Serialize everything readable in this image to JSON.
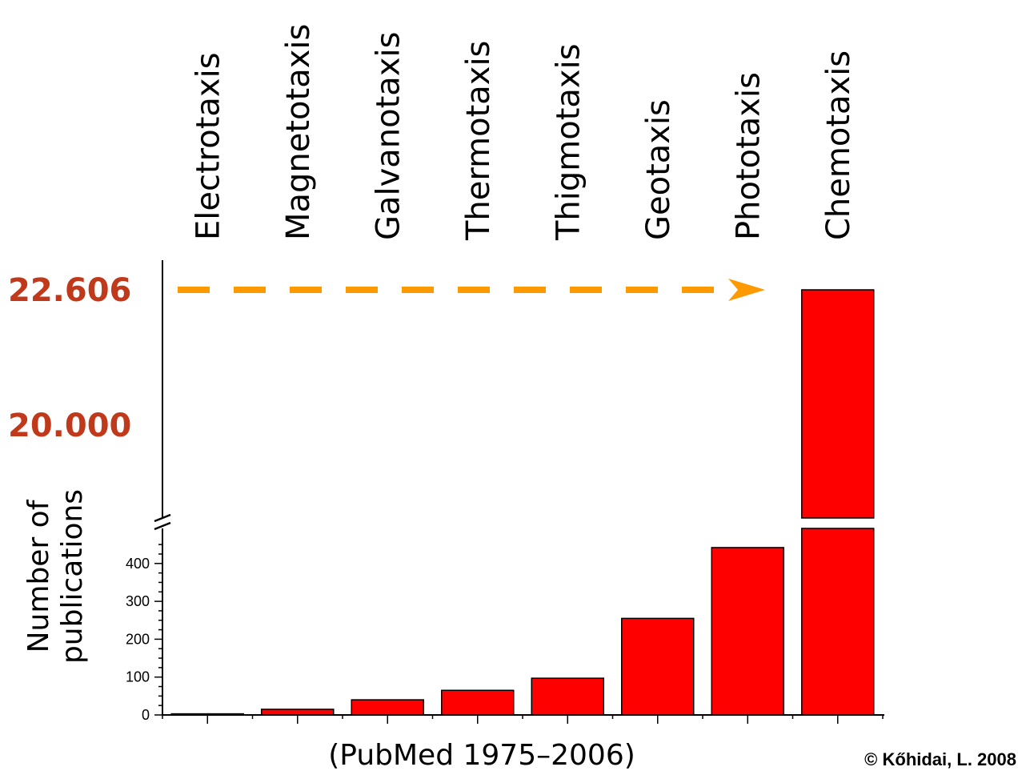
{
  "chart_data": {
    "type": "bar",
    "categories": [
      "Electrotaxis",
      "Magnetotaxis",
      "Galvanotaxis",
      "Thermotaxis",
      "Thigmotaxis",
      "Geotaxis",
      "Phototaxis",
      "Chemotaxis"
    ],
    "values": [
      3,
      15,
      40,
      65,
      97,
      255,
      442,
      22606
    ],
    "ylabel_lines": [
      "Number of",
      "publications"
    ],
    "xlabel": "(PubMed 1975–2006)",
    "ylim_lower": [
      0,
      460
    ],
    "ylim_upper_ticks": [
      20000,
      22606
    ],
    "upper_tick_labels": [
      "20.000",
      "22.606"
    ],
    "lower_tick_labels": [
      "0",
      "100",
      "200",
      "300",
      "400"
    ],
    "lower_tick_values": [
      0,
      100,
      200,
      300,
      400
    ],
    "axis_break": true,
    "bar_color": "#ff0000",
    "highlight_color": "#c0391b",
    "arrow_color": "#ff9900",
    "credit": "© Kőhidai, L. 2008"
  }
}
